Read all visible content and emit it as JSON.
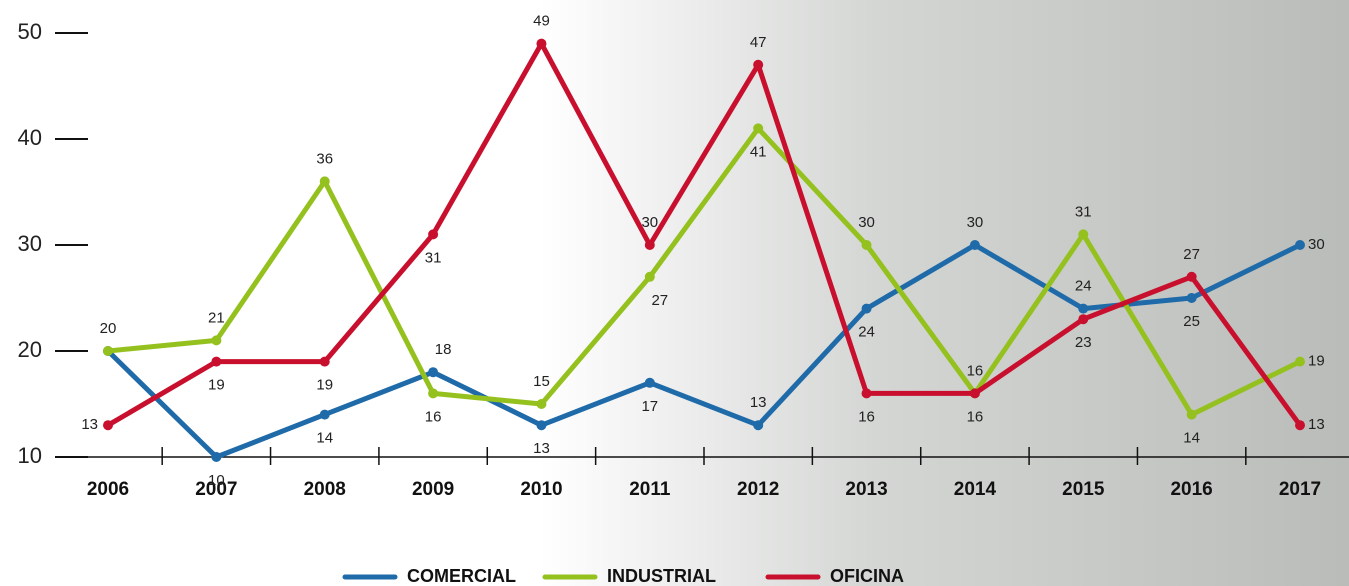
{
  "chart_data": {
    "type": "line",
    "categories": [
      "2006",
      "2007",
      "2008",
      "2009",
      "2010",
      "2011",
      "2012",
      "2013",
      "2014",
      "2015",
      "2016",
      "2017"
    ],
    "series": [
      {
        "name": "COMERCIAL",
        "color": "#1f6aa8",
        "values": [
          20,
          10,
          14,
          18,
          13,
          17,
          13,
          24,
          30,
          24,
          25,
          30
        ],
        "value_labels": [
          null,
          "10",
          "14",
          "18",
          "13",
          "17",
          "13",
          "24",
          "30",
          "24",
          "25",
          "30"
        ]
      },
      {
        "name": "INDUSTRIAL",
        "color": "#95c11f",
        "values": [
          20,
          21,
          36,
          16,
          15,
          27,
          41,
          30,
          16,
          31,
          14,
          19
        ]
      },
      {
        "name": "OFICINA",
        "color": "#c8102e",
        "values": [
          13,
          19,
          19,
          31,
          49,
          30,
          47,
          16,
          16,
          23,
          27,
          13
        ]
      }
    ],
    "ylim": [
      10,
      50
    ],
    "yticks": [
      10,
      20,
      30,
      40,
      50
    ]
  }
}
